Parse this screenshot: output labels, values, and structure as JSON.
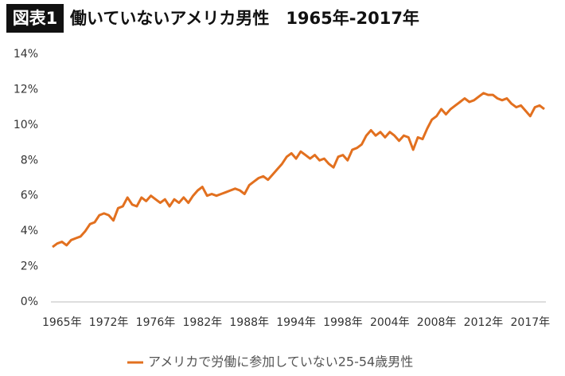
{
  "chart_data": {
    "type": "line",
    "figure_label": "図表1",
    "title": "働いていないアメリカ男性　1965年-2017年",
    "categories": [
      null,
      null,
      "1965年",
      null,
      null,
      null,
      null,
      null,
      null,
      null,
      null,
      null,
      "1972年",
      null,
      null,
      null,
      null,
      null,
      null,
      null,
      null,
      null,
      "1976年",
      null,
      null,
      null,
      null,
      null,
      null,
      null,
      null,
      null,
      "1982年",
      null,
      null,
      null,
      null,
      null,
      null,
      null,
      null,
      null,
      "1988年",
      null,
      null,
      null,
      null,
      null,
      null,
      null,
      null,
      null,
      "1994年",
      null,
      null,
      null,
      null,
      null,
      null,
      null,
      null,
      null,
      "1998年",
      null,
      null,
      null,
      null,
      null,
      null,
      null,
      null,
      null,
      "2004年",
      null,
      null,
      null,
      null,
      null,
      null,
      null,
      null,
      null,
      "2008年",
      null,
      null,
      null,
      null,
      null,
      null,
      null,
      null,
      null,
      "2012年",
      null,
      null,
      null,
      null,
      null,
      null,
      null,
      null,
      null,
      "2017年",
      null,
      null,
      null
    ],
    "series": [
      {
        "name": "アメリカで労働に参加していない25-54歳男性",
        "color": "#e2701f",
        "values": [
          3.1,
          3.3,
          3.4,
          3.2,
          3.5,
          3.6,
          3.7,
          4.0,
          4.4,
          4.5,
          4.9,
          5.0,
          4.9,
          4.6,
          5.3,
          5.4,
          5.9,
          5.5,
          5.4,
          5.9,
          5.7,
          6.0,
          5.8,
          5.6,
          5.8,
          5.4,
          5.8,
          5.6,
          5.9,
          5.6,
          6.0,
          6.3,
          6.5,
          6.0,
          6.1,
          6.0,
          6.1,
          6.2,
          6.3,
          6.4,
          6.3,
          6.1,
          6.6,
          6.8,
          7.0,
          7.1,
          6.9,
          7.2,
          7.5,
          7.8,
          8.2,
          8.4,
          8.1,
          8.5,
          8.3,
          8.1,
          8.3,
          8.0,
          8.1,
          7.8,
          7.6,
          8.2,
          8.3,
          8.0,
          8.6,
          8.7,
          8.9,
          9.4,
          9.7,
          9.4,
          9.6,
          9.3,
          9.6,
          9.4,
          9.1,
          9.4,
          9.3,
          8.6,
          9.3,
          9.2,
          9.8,
          10.3,
          10.5,
          10.9,
          10.6,
          10.9,
          11.1,
          11.3,
          11.5,
          11.3,
          11.4,
          11.6,
          11.8,
          11.7,
          11.7,
          11.5,
          11.4,
          11.5,
          11.2,
          11.0,
          11.1,
          10.8,
          10.5,
          11.0,
          11.1,
          10.9
        ]
      }
    ],
    "ylim": [
      0,
      14
    ],
    "yticks": [
      {
        "value": 0,
        "label": "0%"
      },
      {
        "value": 2,
        "label": "2%"
      },
      {
        "value": 4,
        "label": "4%"
      },
      {
        "value": 6,
        "label": "6%"
      },
      {
        "value": 8,
        "label": "8%"
      },
      {
        "value": 10,
        "label": "10%"
      },
      {
        "value": 12,
        "label": "12%"
      },
      {
        "value": 14,
        "label": "14%"
      }
    ],
    "grid": false
  }
}
